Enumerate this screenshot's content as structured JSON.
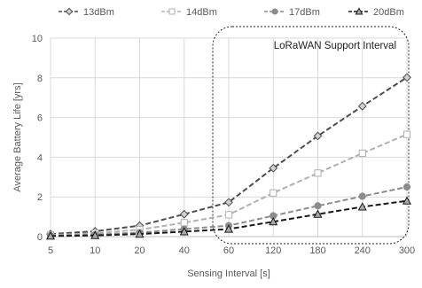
{
  "chart_data": {
    "type": "line",
    "categories": [
      "5",
      "10",
      "20",
      "40",
      "60",
      "120",
      "180",
      "240",
      "300"
    ],
    "series": [
      {
        "name": "-◇-13dBm",
        "values": [
          0.13,
          0.27,
          0.55,
          1.13,
          1.73,
          3.45,
          5.07,
          6.57,
          8.02
        ],
        "color": "#4d4d4d",
        "dash": "6,3",
        "marker": "diamond",
        "marker_fill": "#d0d0d0"
      },
      {
        "name": "-□-14dBm",
        "values": [
          0.08,
          0.17,
          0.35,
          0.7,
          1.1,
          2.2,
          3.2,
          4.2,
          5.15
        ],
        "color": "#b0b0b0",
        "dash": "6,3",
        "marker": "square",
        "marker_fill": "#ffffff"
      },
      {
        "name": "-●-17dBm",
        "values": [
          0.05,
          0.1,
          0.2,
          0.38,
          0.55,
          1.05,
          1.55,
          2.03,
          2.5
        ],
        "color": "#8c8c8c",
        "dash": "6,3",
        "marker": "circle",
        "marker_fill": "#8c8c8c"
      },
      {
        "name": "-▲-20dBm",
        "values": [
          0.03,
          0.06,
          0.13,
          0.25,
          0.38,
          0.75,
          1.13,
          1.5,
          1.8
        ],
        "color": "#1a1a1a",
        "dash": "6,3",
        "marker": "triangle",
        "marker_fill": "#aaaaaa"
      }
    ],
    "xlabel": "Sensing Interval [s]",
    "ylabel": "Average Battery Life [yrs]",
    "ylim": [
      0,
      10
    ],
    "yticks": [
      "0",
      "2",
      "4",
      "6",
      "8",
      "10"
    ],
    "grid": true,
    "legend_position": "top",
    "annotation": {
      "label": "LoRaWAN Support Interval",
      "from_category": "60",
      "to_category": "300"
    }
  }
}
